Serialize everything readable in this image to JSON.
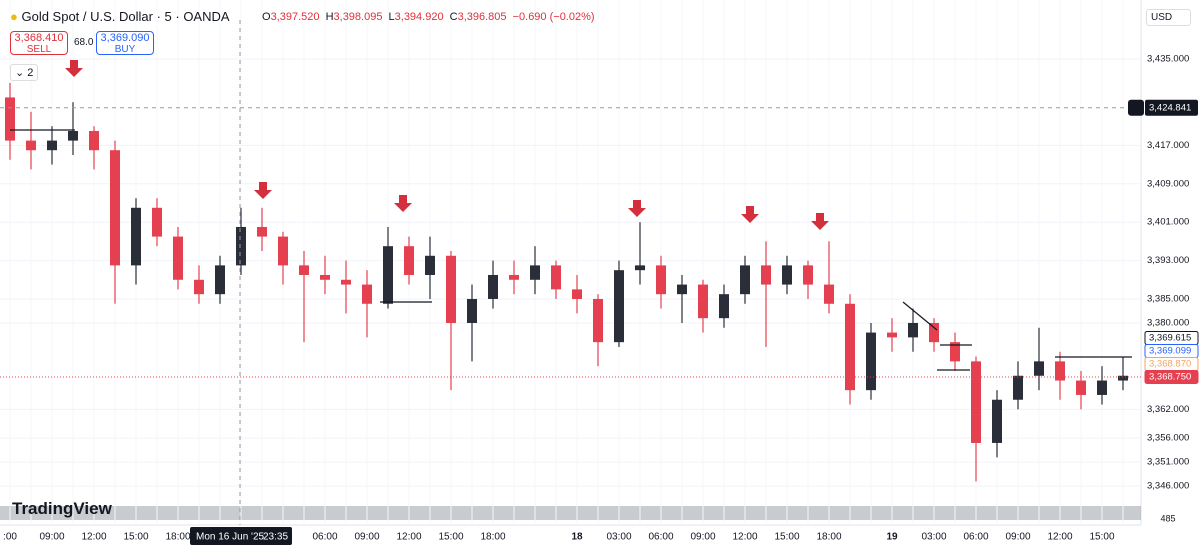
{
  "header": {
    "symbol": "Gold Spot / U.S. Dollar · 5 · OANDA",
    "o_label": "O",
    "open": "3,397.520",
    "h_label": "H",
    "high": "3,398.095",
    "l_label": "L",
    "low": "3,394.920",
    "c_label": "C",
    "close": "3,396.805",
    "change": "−0.690 (−0.02%)",
    "currency": "USD"
  },
  "trade": {
    "sell_price": "3,368.410",
    "sell": "SELL",
    "spread": "68.0",
    "buy_price": "3,369.090",
    "buy": "BUY",
    "indicators": "2"
  },
  "logo": "TradingView",
  "volume_label": "485",
  "crosshair": {
    "date": "Mon 16 Jun '25",
    "time": "23:35"
  },
  "chart_data": {
    "type": "candlestick",
    "categories": [
      ":00",
      null,
      "09:00",
      null,
      "12:00",
      null,
      "15:00",
      null,
      "18:00",
      null,
      null,
      null,
      null,
      null,
      null,
      "06:00",
      null,
      "09:00",
      null,
      "12:00",
      null,
      "15:00",
      null,
      "18:00",
      null,
      null,
      null,
      "18",
      null,
      "03:00",
      null,
      "06:00",
      null,
      "09:00",
      null,
      "12:00",
      null,
      "15:00",
      null,
      "18:00",
      null,
      null,
      "19",
      null,
      "03:00",
      null,
      "06:00",
      null,
      "09:00",
      null,
      "12:00",
      null,
      "15:00",
      null
    ],
    "open": [
      3427,
      3418,
      3416,
      3418,
      3420,
      3416,
      3392,
      3404,
      3398,
      3389,
      3386,
      3392,
      3400,
      3398,
      3392,
      3390,
      3389,
      3388,
      3384,
      3396,
      3390,
      3394,
      3380,
      3385,
      3390,
      3389,
      3392,
      3387,
      3385,
      3376,
      3391,
      3392,
      3386,
      3388,
      3381,
      3386,
      3392,
      3388,
      3392,
      3388,
      3384,
      3366,
      3378,
      3377,
      3380,
      3376,
      3372,
      3355,
      3364,
      3369,
      3372,
      3368,
      3365,
      3368
    ],
    "high": [
      3430,
      3424,
      3421,
      3426,
      3421,
      3418,
      3406,
      3406,
      3400,
      3392,
      3394,
      3404,
      3404,
      3399,
      3395,
      3394,
      3393,
      3391,
      3400,
      3398,
      3398,
      3395,
      3388,
      3393,
      3393,
      3396,
      3393,
      3390,
      3386,
      3393,
      3401,
      3394,
      3390,
      3389,
      3388,
      3394,
      3397,
      3394,
      3393,
      3397,
      3386,
      3380,
      3381,
      3383,
      3381,
      3378,
      3373,
      3366,
      3372,
      3379,
      3374,
      3370,
      3371,
      3373
    ],
    "low": [
      3414,
      3412,
      3413,
      3415,
      3412,
      3384,
      3388,
      3396,
      3387,
      3384,
      3384,
      3390,
      3395,
      3388,
      3376,
      3386,
      3382,
      3377,
      3383,
      3388,
      3385,
      3366,
      3372,
      3383,
      3386,
      3386,
      3385,
      3382,
      3371,
      3375,
      3388,
      3383,
      3380,
      3378,
      3379,
      3384,
      3375,
      3386,
      3385,
      3382,
      3363,
      3364,
      3374,
      3374,
      3374,
      3370,
      3347,
      3352,
      3362,
      3366,
      3364,
      3362,
      3363,
      3366
    ],
    "close": [
      3418,
      3416,
      3418,
      3420,
      3416,
      3392,
      3404,
      3398,
      3389,
      3386,
      3392,
      3400,
      3398,
      3392,
      3390,
      3389,
      3388,
      3384,
      3396,
      3390,
      3394,
      3380,
      3385,
      3390,
      3389,
      3392,
      3387,
      3385,
      3376,
      3391,
      3392,
      3386,
      3388,
      3381,
      3386,
      3392,
      3388,
      3392,
      3388,
      3384,
      3366,
      3378,
      3377,
      3380,
      3376,
      3372,
      3355,
      3364,
      3369,
      3372,
      3368,
      3365,
      3368,
      3369
    ],
    "up_color": "#2a2e39",
    "down_color": "#e5404f",
    "ylim": [
      3337.9,
      3447.3
    ],
    "yticks": [
      {
        "value": 3435,
        "label": "3,435.000"
      },
      {
        "value": 3417,
        "label": "3,417.000"
      },
      {
        "value": 3409,
        "label": "3,409.000"
      },
      {
        "value": 3401,
        "label": "3,401.000"
      },
      {
        "value": 3393,
        "label": "3,393.000"
      },
      {
        "value": 3385,
        "label": "3,385.000"
      },
      {
        "value": 3380,
        "label": "3,380.000"
      },
      {
        "value": 3362,
        "label": "3,362.000"
      },
      {
        "value": 3356,
        "label": "3,356.000"
      },
      {
        "value": 3351,
        "label": "3,351.000"
      },
      {
        "value": 3346,
        "label": "3,346.000"
      }
    ],
    "grid": true,
    "crosshair_price": {
      "value": 3424.841,
      "label": "3,424.841"
    },
    "price_labels": [
      {
        "value": 3369.615,
        "label": "3,369.615",
        "color": "#131722",
        "bg": "#ffffff"
      },
      {
        "value": 3369.099,
        "label": "3,369.099",
        "color": "#2962ff",
        "bg": "#ffffff"
      },
      {
        "value": 3368.87,
        "label": "3,368.870",
        "color": "#f7a35c",
        "bg": "#ffffff"
      },
      {
        "value": 3368.75,
        "label": "3,368.750",
        "color": "#ffffff",
        "bg": "#e5404f"
      }
    ]
  }
}
